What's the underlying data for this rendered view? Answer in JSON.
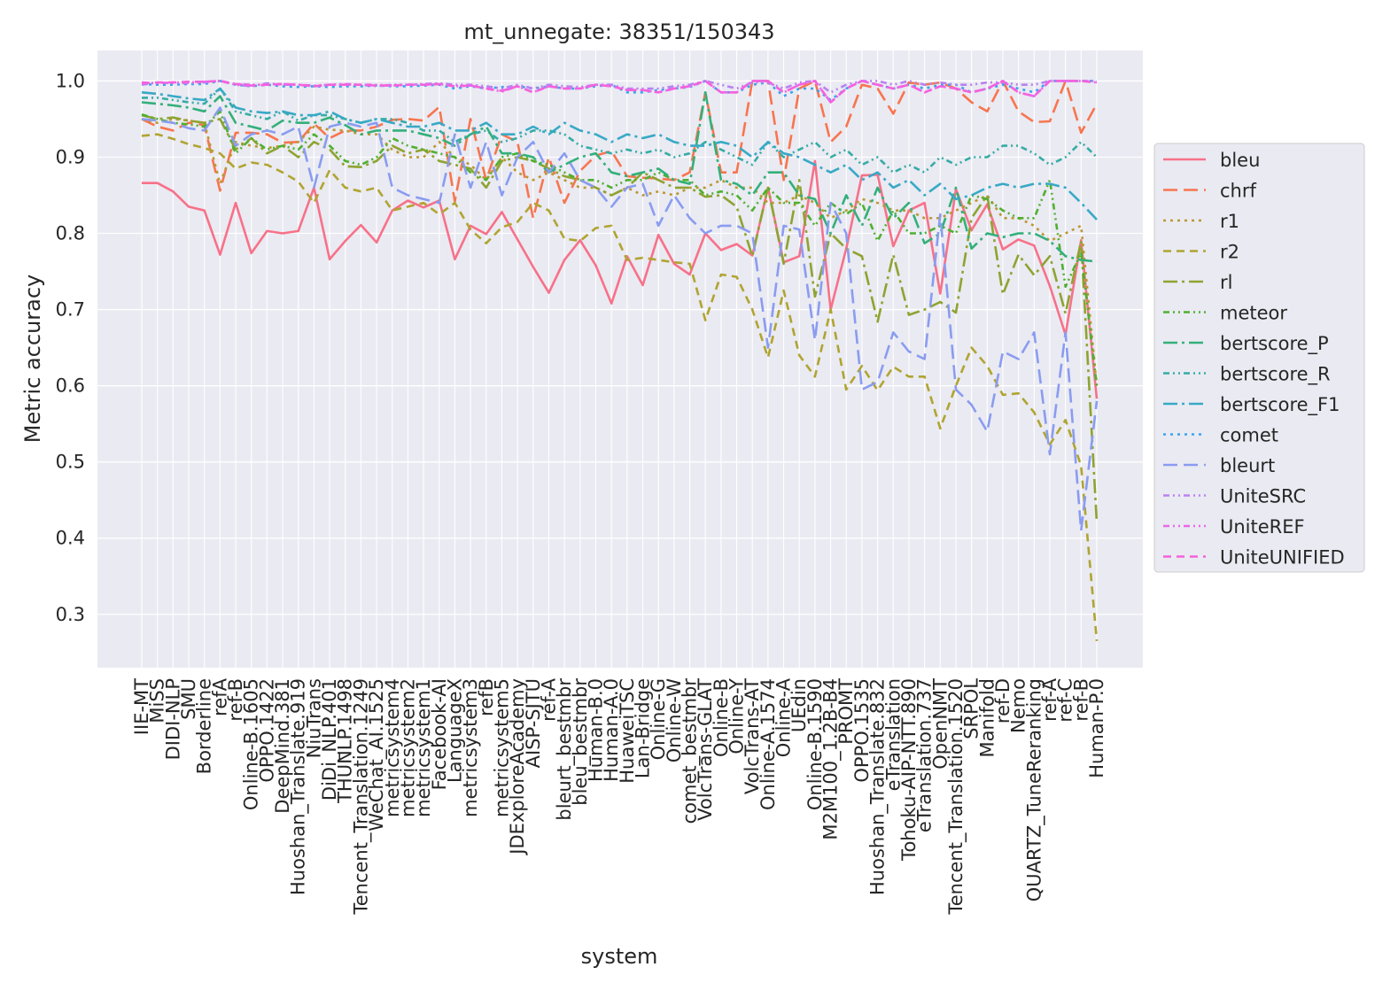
{
  "chart_data": {
    "type": "line",
    "title": "mt_unnegate: 38351/150343",
    "xlabel": "system",
    "ylabel": "Metric accuracy",
    "ylim": [
      0.23,
      1.04
    ],
    "yticks": [
      "0.3",
      "0.4",
      "0.5",
      "0.6",
      "0.7",
      "0.8",
      "0.9",
      "1.0"
    ],
    "grid": true,
    "legend_position": "right",
    "categories": [
      "IIE-MT",
      "MiSS",
      "DIDI-NLP",
      "SMU",
      "Borderline",
      "refA",
      "ref-B",
      "Online-B.1605",
      "OPPO.1422",
      "DeepMind.381",
      "Huoshan_Translate.919",
      "NiuTrans",
      "DiDi_NLP.401",
      "THUNLP.1498",
      "Tencent_Translation.1249",
      "WeChat_AI.1525",
      "metricsystem4",
      "metricsystem2",
      "metricsystem1",
      "Facebook-AI",
      "LanguageX",
      "metricsystem3",
      "refB",
      "metricsystem5",
      "JDExploreAcademy",
      "AISP-SJTU",
      "ref-A",
      "bleurt_bestmbr",
      "bleu_bestmbr",
      "Human-B.0",
      "Human-A.0",
      "HuaweiTSC",
      "Lan-Bridge",
      "Online-G",
      "Online-W",
      "comet_bestmbr",
      "VolcTrans-GLAT",
      "Online-B",
      "Online-Y",
      "VolcTrans-AT",
      "Online-A.1574",
      "Online-A",
      "UEdin",
      "Online-B.1590",
      "M2M100_1.2B-B4",
      "PROMT",
      "OPPO.1535",
      "Huoshan_Translate.832",
      "eTranslation",
      "Tohoku-AIP-NTT.890",
      "eTranslation.737",
      "OpenNMT",
      "Tencent_Translation.1520",
      "SRPOL",
      "Manifold",
      "ref-D",
      "Nemo",
      "QUARTZ_TuneReranking",
      "ref-A",
      "ref-C",
      "ref-B",
      "Human-P.0"
    ],
    "series": [
      {
        "name": "bleu",
        "color": "#f77189",
        "dash": "solid",
        "values": [
          0.866,
          0.866,
          0.855,
          0.835,
          0.83,
          0.772,
          0.84,
          0.774,
          0.803,
          0.8,
          0.803,
          0.86,
          0.766,
          0.79,
          0.811,
          0.788,
          0.83,
          0.843,
          0.834,
          0.843,
          0.766,
          0.81,
          0.799,
          0.828,
          0.792,
          0.756,
          0.722,
          0.765,
          0.791,
          0.758,
          0.708,
          0.77,
          0.732,
          0.798,
          0.76,
          0.746,
          0.8,
          0.778,
          0.786,
          0.771,
          0.86,
          0.762,
          0.77,
          0.895,
          0.7,
          0.78,
          0.876,
          0.877,
          0.783,
          0.83,
          0.84,
          0.721,
          0.858,
          0.804,
          0.838,
          0.779,
          0.792,
          0.784,
          0.731,
          0.667,
          0.791,
          0.583
        ]
      },
      {
        "name": "chrf",
        "color": "#f7754f",
        "dash": "16,7",
        "values": [
          0.95,
          0.94,
          0.935,
          0.945,
          0.942,
          0.856,
          0.932,
          0.932,
          0.93,
          0.919,
          0.92,
          0.944,
          0.925,
          0.935,
          0.935,
          0.94,
          0.949,
          0.95,
          0.948,
          0.966,
          0.842,
          0.95,
          0.87,
          0.93,
          0.92,
          0.82,
          0.9,
          0.84,
          0.882,
          0.902,
          0.908,
          0.875,
          0.873,
          0.872,
          0.87,
          0.88,
          0.985,
          0.88,
          0.88,
          1.0,
          1.0,
          0.87,
          0.99,
          1.0,
          0.92,
          0.94,
          0.995,
          0.99,
          0.957,
          0.998,
          0.995,
          0.998,
          0.99,
          0.972,
          0.96,
          1.0,
          0.96,
          0.946,
          0.947,
          1.0,
          0.932,
          0.97
        ]
      },
      {
        "name": "r1",
        "color": "#bb9832",
        "dash": "3,5",
        "values": [
          0.95,
          0.945,
          0.95,
          0.948,
          0.945,
          0.865,
          0.92,
          0.915,
          0.912,
          0.915,
          0.92,
          0.94,
          0.936,
          0.935,
          0.93,
          0.93,
          0.91,
          0.9,
          0.9,
          0.92,
          0.9,
          0.89,
          0.87,
          0.9,
          0.88,
          0.87,
          0.88,
          0.87,
          0.86,
          0.86,
          0.85,
          0.86,
          0.85,
          0.855,
          0.85,
          0.86,
          0.86,
          0.87,
          0.86,
          0.86,
          0.84,
          0.84,
          0.85,
          0.84,
          0.82,
          0.83,
          0.845,
          0.84,
          0.83,
          0.83,
          0.82,
          0.82,
          0.83,
          0.84,
          0.85,
          0.82,
          0.82,
          0.81,
          0.79,
          0.8,
          0.81,
          0.6
        ]
      },
      {
        "name": "r2",
        "color": "#b0a431",
        "dash": "9,6",
        "values": [
          0.928,
          0.93,
          0.924,
          0.917,
          0.912,
          0.905,
          0.885,
          0.893,
          0.89,
          0.88,
          0.868,
          0.84,
          0.883,
          0.86,
          0.855,
          0.86,
          0.83,
          0.835,
          0.84,
          0.825,
          0.84,
          0.805,
          0.787,
          0.808,
          0.815,
          0.84,
          0.83,
          0.793,
          0.79,
          0.807,
          0.81,
          0.765,
          0.768,
          0.765,
          0.762,
          0.76,
          0.686,
          0.746,
          0.743,
          0.7,
          0.637,
          0.725,
          0.64,
          0.612,
          0.7,
          0.595,
          0.626,
          0.594,
          0.625,
          0.612,
          0.612,
          0.544,
          0.6,
          0.65,
          0.626,
          0.588,
          0.59,
          0.565,
          0.523,
          0.555,
          0.495,
          0.265
        ]
      },
      {
        "name": "rl",
        "color": "#8ea331",
        "dash": "16,5,3,5",
        "values": [
          0.955,
          0.95,
          0.952,
          0.948,
          0.945,
          0.95,
          0.91,
          0.925,
          0.905,
          0.915,
          0.9,
          0.92,
          0.91,
          0.888,
          0.887,
          0.895,
          0.915,
          0.905,
          0.91,
          0.895,
          0.89,
          0.885,
          0.86,
          0.895,
          0.9,
          0.895,
          0.885,
          0.875,
          0.87,
          0.86,
          0.85,
          0.86,
          0.88,
          0.87,
          0.86,
          0.86,
          0.848,
          0.85,
          0.835,
          0.77,
          0.86,
          0.76,
          0.87,
          0.717,
          0.8,
          0.78,
          0.77,
          0.684,
          0.772,
          0.693,
          0.7,
          0.71,
          0.696,
          0.82,
          0.85,
          0.72,
          0.772,
          0.745,
          0.77,
          0.695,
          0.79,
          0.42
        ]
      },
      {
        "name": "meteor",
        "color": "#4fb030",
        "dash": "7,4,2,4,2,4",
        "values": [
          0.956,
          0.95,
          0.945,
          0.943,
          0.94,
          0.96,
          0.905,
          0.925,
          0.91,
          0.915,
          0.91,
          0.93,
          0.915,
          0.895,
          0.89,
          0.9,
          0.925,
          0.915,
          0.91,
          0.905,
          0.9,
          0.88,
          0.87,
          0.9,
          0.905,
          0.895,
          0.89,
          0.88,
          0.87,
          0.87,
          0.86,
          0.87,
          0.87,
          0.88,
          0.87,
          0.87,
          0.85,
          0.855,
          0.85,
          0.83,
          0.86,
          0.84,
          0.84,
          0.81,
          0.84,
          0.825,
          0.84,
          0.79,
          0.83,
          0.8,
          0.8,
          0.81,
          0.8,
          0.85,
          0.845,
          0.83,
          0.82,
          0.82,
          0.87,
          0.73,
          0.775,
          0.6
        ]
      },
      {
        "name": "bertscore_P",
        "color": "#33b07a",
        "dash": "16,5,3,5",
        "values": [
          0.972,
          0.97,
          0.968,
          0.965,
          0.96,
          0.98,
          0.945,
          0.94,
          0.935,
          0.948,
          0.945,
          0.945,
          0.952,
          0.942,
          0.93,
          0.935,
          0.935,
          0.935,
          0.93,
          0.925,
          0.915,
          0.93,
          0.94,
          0.905,
          0.905,
          0.9,
          0.88,
          0.89,
          0.9,
          0.905,
          0.88,
          0.875,
          0.88,
          0.885,
          0.87,
          0.865,
          0.985,
          0.87,
          0.865,
          0.85,
          0.88,
          0.88,
          0.85,
          0.845,
          0.8,
          0.85,
          0.81,
          0.86,
          0.82,
          0.84,
          0.787,
          0.8,
          0.86,
          0.78,
          0.8,
          0.795,
          0.8,
          0.8,
          0.79,
          0.77,
          0.765,
          0.763
        ]
      },
      {
        "name": "bertscore_R",
        "color": "#35aca4",
        "dash": "7,4,2,4,2,4",
        "values": [
          0.978,
          0.978,
          0.975,
          0.972,
          0.97,
          0.99,
          0.96,
          0.955,
          0.95,
          0.96,
          0.948,
          0.955,
          0.955,
          0.95,
          0.945,
          0.95,
          0.95,
          0.945,
          0.935,
          0.935,
          0.92,
          0.93,
          0.935,
          0.92,
          0.925,
          0.935,
          0.935,
          0.93,
          0.915,
          0.91,
          0.905,
          0.91,
          0.905,
          0.91,
          0.9,
          0.905,
          0.92,
          0.91,
          0.9,
          0.89,
          0.92,
          0.9,
          0.91,
          0.92,
          0.9,
          0.91,
          0.89,
          0.9,
          0.88,
          0.89,
          0.88,
          0.9,
          0.89,
          0.9,
          0.9,
          0.915,
          0.915,
          0.905,
          0.89,
          0.9,
          0.92,
          0.9
        ]
      },
      {
        "name": "bertscore_F1",
        "color": "#38a9c5",
        "dash": "16,5,3,5",
        "values": [
          0.985,
          0.983,
          0.98,
          0.977,
          0.975,
          0.99,
          0.965,
          0.96,
          0.958,
          0.96,
          0.955,
          0.955,
          0.96,
          0.95,
          0.945,
          0.95,
          0.945,
          0.94,
          0.94,
          0.945,
          0.935,
          0.935,
          0.945,
          0.93,
          0.93,
          0.94,
          0.93,
          0.945,
          0.935,
          0.93,
          0.92,
          0.93,
          0.925,
          0.93,
          0.92,
          0.915,
          0.915,
          0.92,
          0.915,
          0.9,
          0.92,
          0.905,
          0.9,
          0.89,
          0.88,
          0.89,
          0.87,
          0.88,
          0.86,
          0.87,
          0.85,
          0.865,
          0.845,
          0.85,
          0.86,
          0.865,
          0.86,
          0.865,
          0.865,
          0.86,
          0.84,
          0.818
        ]
      },
      {
        "name": "comet",
        "color": "#3ba3ec",
        "dash": "3,5",
        "values": [
          0.996,
          0.995,
          0.995,
          0.996,
          0.996,
          1.0,
          0.995,
          0.993,
          0.995,
          0.993,
          0.992,
          0.993,
          0.992,
          0.993,
          0.993,
          0.994,
          0.993,
          0.993,
          0.994,
          0.995,
          0.99,
          0.993,
          0.99,
          0.992,
          0.993,
          0.99,
          0.993,
          0.99,
          0.99,
          0.993,
          0.995,
          0.985,
          0.985,
          0.988,
          0.99,
          0.992,
          1.0,
          0.985,
          0.985,
          0.995,
          0.998,
          0.98,
          0.99,
          0.99,
          0.975,
          0.99,
          1.0,
          0.995,
          0.99,
          0.995,
          0.99,
          0.995,
          0.995,
          0.985,
          0.99,
          0.995,
          0.99,
          0.985,
          1.0,
          1.0,
          1.0,
          1.0
        ]
      },
      {
        "name": "bleurt",
        "color": "#8a9cf0",
        "dash": "16,7",
        "values": [
          0.95,
          0.948,
          0.945,
          0.938,
          0.935,
          0.965,
          0.915,
          0.93,
          0.935,
          0.93,
          0.94,
          0.86,
          0.94,
          0.945,
          0.94,
          0.945,
          0.86,
          0.85,
          0.845,
          0.84,
          0.93,
          0.86,
          0.92,
          0.85,
          0.9,
          0.92,
          0.88,
          0.905,
          0.87,
          0.86,
          0.835,
          0.86,
          0.865,
          0.81,
          0.85,
          0.82,
          0.8,
          0.81,
          0.81,
          0.8,
          0.65,
          0.81,
          0.805,
          0.66,
          0.84,
          0.8,
          0.595,
          0.605,
          0.67,
          0.645,
          0.635,
          0.825,
          0.595,
          0.575,
          0.54,
          0.645,
          0.635,
          0.67,
          0.51,
          0.67,
          0.41,
          0.58
        ]
      },
      {
        "name": "UniteSRC",
        "color": "#b982f0",
        "dash": "7,4,2,4,2,4",
        "values": [
          0.995,
          0.998,
          0.997,
          0.997,
          0.998,
          1.0,
          0.995,
          0.993,
          0.997,
          0.995,
          0.995,
          0.993,
          0.995,
          0.995,
          0.995,
          0.993,
          0.995,
          0.995,
          0.996,
          0.997,
          0.995,
          0.995,
          0.993,
          0.99,
          0.995,
          0.99,
          0.995,
          0.993,
          0.992,
          0.995,
          0.995,
          0.99,
          0.99,
          0.99,
          0.993,
          0.995,
          1.0,
          0.995,
          0.99,
          0.998,
          0.998,
          0.99,
          0.998,
          1.0,
          0.985,
          0.995,
          1.0,
          1.0,
          0.995,
          1.0,
          0.995,
          0.998,
          0.995,
          0.995,
          0.998,
          0.998,
          0.995,
          0.995,
          1.0,
          1.0,
          1.0,
          1.0
        ]
      },
      {
        "name": "UniteREF",
        "color": "#e967ea",
        "dash": "7,4,2,4,2,4",
        "values": [
          0.998,
          0.997,
          0.998,
          0.998,
          0.999,
          1.0,
          0.996,
          0.995,
          0.995,
          0.996,
          0.995,
          0.994,
          0.995,
          0.996,
          0.995,
          0.995,
          0.994,
          0.995,
          0.995,
          0.996,
          0.993,
          0.994,
          0.99,
          0.986,
          0.993,
          0.985,
          0.993,
          0.99,
          0.99,
          0.995,
          0.993,
          0.988,
          0.988,
          0.985,
          0.99,
          0.993,
          1.0,
          0.985,
          0.985,
          1.0,
          1.0,
          0.985,
          0.995,
          1.0,
          0.972,
          0.99,
          1.0,
          0.995,
          0.99,
          0.995,
          0.985,
          0.993,
          0.99,
          0.985,
          0.99,
          1.0,
          0.985,
          0.98,
          1.0,
          1.0,
          1.0,
          0.998
        ]
      },
      {
        "name": "UniteUNIFIED",
        "color": "#f561dd",
        "dash": "9,6",
        "values": [
          0.997,
          0.998,
          0.998,
          0.999,
          0.999,
          1.0,
          0.996,
          0.994,
          0.995,
          0.996,
          0.995,
          0.993,
          0.995,
          0.995,
          0.995,
          0.994,
          0.994,
          0.995,
          0.995,
          0.996,
          0.993,
          0.994,
          0.99,
          0.987,
          0.993,
          0.985,
          0.993,
          0.99,
          0.99,
          0.995,
          0.993,
          0.988,
          0.988,
          0.985,
          0.99,
          0.993,
          1.0,
          0.985,
          0.985,
          1.0,
          1.0,
          0.985,
          0.995,
          1.0,
          0.972,
          0.99,
          1.0,
          0.995,
          0.99,
          0.995,
          0.985,
          0.993,
          0.99,
          0.985,
          0.99,
          1.0,
          0.985,
          0.98,
          1.0,
          1.0,
          1.0,
          0.998
        ]
      }
    ]
  }
}
